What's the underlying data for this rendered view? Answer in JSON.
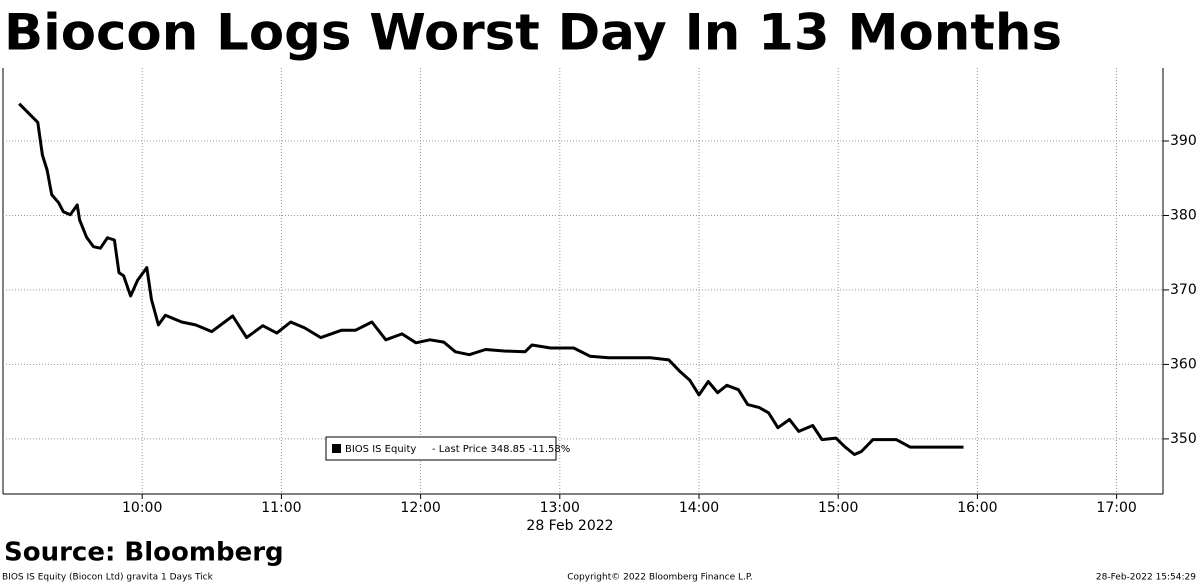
{
  "chart_data": {
    "type": "line",
    "title": "Biocon Logs Worst Day In 13 Months",
    "x_label": "28 Feb 2022",
    "source": "Source: Bloomberg",
    "footer_left": "BIOS IS Equity (Biocon Ltd) gravita 1 Days  Tick",
    "footer_center": "Copyright© 2022 Bloomberg Finance L.P.",
    "footer_right": "28-Feb-2022 15:54:29",
    "legend_text": "- Last Price 348.85  -11.58%",
    "x": [
      "09:07",
      "09:15",
      "09:17",
      "09:19",
      "09:21",
      "09:24",
      "09:26",
      "09:29",
      "09:32",
      "09:33",
      "09:36",
      "09:39",
      "09:42",
      "09:45",
      "09:48",
      "09:50",
      "09:52",
      "09:55",
      "09:58",
      "10:02",
      "10:04",
      "10:07",
      "10:10",
      "10:17",
      "10:23",
      "10:30",
      "10:39",
      "10:45",
      "10:52",
      "10:58",
      "11:04",
      "11:10",
      "11:17",
      "11:26",
      "11:32",
      "11:39",
      "11:45",
      "11:52",
      "11:58",
      "12:04",
      "12:10",
      "12:15",
      "12:21",
      "12:28",
      "12:36",
      "12:45",
      "12:48",
      "12:56",
      "13:06",
      "13:13",
      "13:21",
      "13:30",
      "13:39",
      "13:47",
      "13:52",
      "13:56",
      "14:00",
      "14:04",
      "14:08",
      "14:12",
      "14:17",
      "14:21",
      "14:26",
      "14:30",
      "14:34",
      "14:39",
      "14:43",
      "14:49",
      "14:53",
      "14:59",
      "15:03",
      "15:07",
      "15:10",
      "15:15",
      "15:20",
      "15:25",
      "15:31",
      "15:54"
    ],
    "series": [
      {
        "name": "BIOS IS Equity",
        "color": "#000000",
        "values": [
          395.0,
          392.5,
          388.1,
          386.1,
          382.8,
          381.7,
          380.5,
          380.1,
          381.4,
          379.4,
          377.1,
          375.8,
          375.6,
          377.0,
          376.7,
          372.3,
          371.9,
          369.2,
          371.3,
          373.0,
          368.7,
          365.3,
          366.6,
          365.7,
          365.3,
          364.4,
          366.5,
          363.6,
          365.2,
          364.2,
          365.7,
          364.9,
          363.6,
          364.6,
          364.6,
          365.7,
          363.3,
          364.1,
          362.9,
          363.3,
          363.0,
          361.7,
          361.3,
          362.0,
          361.8,
          361.7,
          362.6,
          362.2,
          362.2,
          361.1,
          360.9,
          360.9,
          360.9,
          360.6,
          359.0,
          357.9,
          355.9,
          357.7,
          356.2,
          357.2,
          356.6,
          354.6,
          354.2,
          353.5,
          351.5,
          352.6,
          351.0,
          351.8,
          349.9,
          350.1,
          348.9,
          347.9,
          348.3,
          349.9,
          349.9,
          349.9,
          348.9,
          348.9
        ]
      }
    ],
    "xlim": [
      "09:00",
      "17:20"
    ],
    "xticks": [
      "10:00",
      "11:00",
      "12:00",
      "13:00",
      "14:00",
      "15:00",
      "16:00",
      "17:00"
    ],
    "ylim": [
      342.6,
      399.8
    ],
    "yticks": [
      350,
      360,
      370,
      380,
      390
    ],
    "grid": true
  }
}
